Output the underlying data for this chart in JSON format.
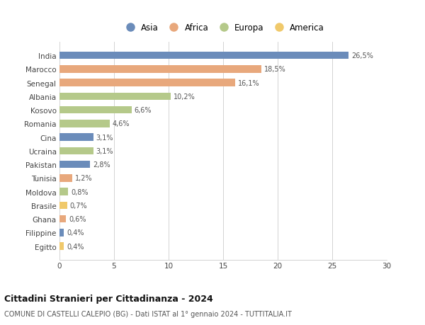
{
  "categories": [
    "India",
    "Marocco",
    "Senegal",
    "Albania",
    "Kosovo",
    "Romania",
    "Cina",
    "Ucraina",
    "Pakistan",
    "Tunisia",
    "Moldova",
    "Brasile",
    "Ghana",
    "Filippine",
    "Egitto"
  ],
  "values": [
    26.5,
    18.5,
    16.1,
    10.2,
    6.6,
    4.6,
    3.1,
    3.1,
    2.8,
    1.2,
    0.8,
    0.7,
    0.6,
    0.4,
    0.4
  ],
  "labels": [
    "26,5%",
    "18,5%",
    "16,1%",
    "10,2%",
    "6,6%",
    "4,6%",
    "3,1%",
    "3,1%",
    "2,8%",
    "1,2%",
    "0,8%",
    "0,7%",
    "0,6%",
    "0,4%",
    "0,4%"
  ],
  "colors": [
    "#6b8cba",
    "#e8a87c",
    "#e8a87c",
    "#b5c98a",
    "#b5c98a",
    "#b5c98a",
    "#6b8cba",
    "#b5c98a",
    "#6b8cba",
    "#e8a87c",
    "#b5c98a",
    "#f0c96b",
    "#e8a87c",
    "#6b8cba",
    "#f0c96b"
  ],
  "legend_labels": [
    "Asia",
    "Africa",
    "Europa",
    "America"
  ],
  "legend_colors": [
    "#6b8cba",
    "#e8a87c",
    "#b5c98a",
    "#f0c96b"
  ],
  "title": "Cittadini Stranieri per Cittadinanza - 2024",
  "subtitle": "COMUNE DI CASTELLI CALEPIO (BG) - Dati ISTAT al 1° gennaio 2024 - TUTTITALIA.IT",
  "xlim": [
    0,
    30
  ],
  "xticks": [
    0,
    5,
    10,
    15,
    20,
    25,
    30
  ],
  "background_color": "#ffffff",
  "bar_height": 0.55
}
